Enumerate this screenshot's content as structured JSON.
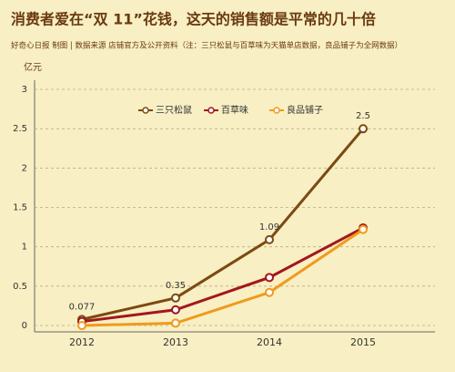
{
  "chart_data": {
    "type": "line",
    "title": "消费者爱在“双 11”花钱，这天的销售额是平常的几十倍",
    "subtitle": "好奇心日报 制图 | 数据来源 店铺官方及公开资料（注：三只松鼠与百草味为天猫单店数据，良品铺子为全网数据）",
    "y_label": "亿元",
    "categories": [
      "2012",
      "2013",
      "2014",
      "2015"
    ],
    "series": [
      {
        "name": "三只松鼠",
        "color": "#7b4a12",
        "values": [
          0.077,
          0.35,
          1.09,
          2.5
        ],
        "show_labels": true
      },
      {
        "name": "百草味",
        "color": "#a3171c",
        "values": [
          0.05,
          0.2,
          0.61,
          1.24
        ]
      },
      {
        "name": "良品铺子",
        "color": "#f09a1e",
        "values": [
          0.0,
          0.03,
          0.42,
          1.22
        ]
      }
    ],
    "ylim": [
      0,
      3
    ],
    "yticks": [
      0,
      0.5,
      1,
      1.5,
      2,
      2.5,
      3
    ],
    "grid": true
  }
}
